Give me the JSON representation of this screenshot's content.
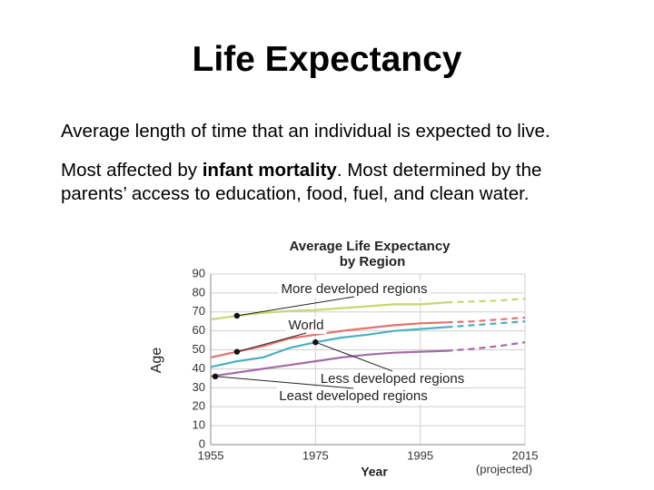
{
  "slide": {
    "title": "Life Expectancy",
    "paragraphs": [
      [
        "Average length of time that an individual is expected to live."
      ],
      [
        "Most affected by ",
        "infant mortality",
        ". Most determined by the parents’ access to education, food, fuel, and clean water."
      ]
    ]
  },
  "chart_data": {
    "type": "line",
    "title": [
      "Average Life Expectancy",
      "by Region"
    ],
    "x_label": "Year",
    "y_label": "Age",
    "annotation": "(projected)",
    "projected_from": 2000,
    "x": [
      1955,
      1960,
      1965,
      1970,
      1975,
      1980,
      1985,
      1990,
      1995,
      2000,
      2005,
      2010,
      2015
    ],
    "series": [
      {
        "name": "More developed regions",
        "color": "#c5d86a",
        "values": [
          66,
          68,
          69.5,
          70.5,
          71,
          72,
          73,
          74,
          74,
          75,
          75.5,
          76,
          77
        ]
      },
      {
        "name": "World",
        "color": "#e8706a",
        "values": [
          46,
          49,
          52,
          56,
          58,
          60,
          61.5,
          63,
          64,
          64.5,
          65,
          66,
          67
        ]
      },
      {
        "name": "Less developed regions",
        "color": "#4bb0c0",
        "values": [
          41,
          44,
          46,
          51,
          54,
          56.5,
          58,
          60,
          61,
          62,
          63,
          64,
          65
        ]
      },
      {
        "name": "Least developed regions",
        "color": "#a36aa8",
        "values": [
          36,
          38,
          40,
          42,
          44,
          46,
          47.5,
          48.5,
          49,
          49.5,
          50.5,
          52,
          54
        ]
      }
    ],
    "xlim": [
      1955,
      2015
    ],
    "xticks": [
      1955,
      1975,
      1995,
      2015
    ],
    "ylim": [
      0,
      90
    ],
    "yticks": [
      0,
      10,
      20,
      30,
      40,
      50,
      60,
      70,
      80,
      90
    ],
    "grid": true
  }
}
